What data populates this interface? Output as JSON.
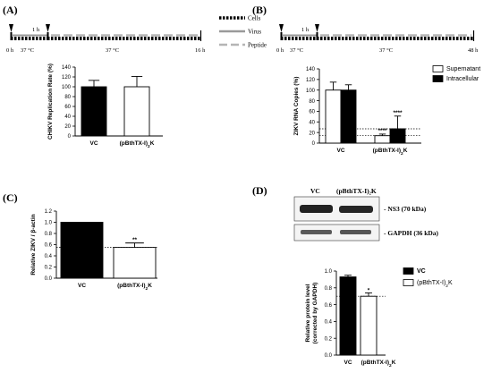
{
  "panels": {
    "A": {
      "label": "(A)"
    },
    "B": {
      "label": "(B)"
    },
    "C": {
      "label": "(C)"
    },
    "D": {
      "label": "(D)"
    }
  },
  "timeline_legend": {
    "cells": "Cells",
    "virus": "Virus",
    "peptide": "Peptide"
  },
  "timeline_A": {
    "t0": "0 h",
    "t1": "1 h",
    "temp1": "37 °C",
    "temp2": "37 °C",
    "tend": "16 h"
  },
  "timeline_B": {
    "t0": "0 h",
    "t1": "1 h",
    "temp1": "37 °C",
    "temp2": "37 °C",
    "tend": "48 h"
  },
  "western_blot": {
    "lane1": "VC",
    "lane2": "(pBthTX-I)₂K",
    "band1": "- NS3 (70 kDa)",
    "band2": "- GAPDH (36 kDa)"
  },
  "chart_data": [
    {
      "panel": "A",
      "type": "bar",
      "categories": [
        "VC",
        "(pBthTX-I)₂K"
      ],
      "values": [
        100,
        100
      ],
      "errors": [
        13,
        21
      ],
      "fills": [
        "#000000",
        "#ffffff"
      ],
      "ylabel": "CHIKV Replication Rate (%)",
      "ylim": [
        0,
        140
      ],
      "yticks": [
        "0",
        "20",
        "40",
        "60",
        "80",
        "100",
        "120",
        "140"
      ]
    },
    {
      "panel": "B",
      "type": "bar",
      "categories": [
        "VC",
        "(pBthTX-I)₂K"
      ],
      "series": [
        {
          "name": "Supernatant",
          "values": [
            100,
            14
          ],
          "errors": [
            15,
            3
          ],
          "fill": "#ffffff"
        },
        {
          "name": "Intracellular",
          "values": [
            100,
            27
          ],
          "errors": [
            10,
            24
          ],
          "fill": "#000000"
        }
      ],
      "annotations": [
        "****",
        "****"
      ],
      "reference_lines": [
        27,
        14
      ],
      "ylabel": "ZIKV RNA Copies (%)",
      "ylim": [
        0,
        140
      ],
      "yticks": [
        "0",
        "20",
        "40",
        "60",
        "80",
        "100",
        "120",
        "140"
      ],
      "legend": "top-right"
    },
    {
      "panel": "C",
      "type": "bar",
      "categories": [
        "VC",
        "(pBthTX-I)₂K"
      ],
      "values": [
        1.0,
        0.55
      ],
      "errors": [
        0,
        0.08
      ],
      "fills": [
        "#000000",
        "#ffffff"
      ],
      "annotations": [
        "",
        "**"
      ],
      "reference_line": 0.55,
      "ylabel": "Relative ZIKV / β-actin",
      "ylim": [
        0,
        1.2
      ],
      "yticks": [
        "0.0",
        "0.2",
        "0.4",
        "0.6",
        "0.8",
        "1.0",
        "1.2"
      ]
    },
    {
      "panel": "D",
      "type": "bar",
      "categories": [
        "VC",
        "(pBthTX-I)₂K"
      ],
      "values": [
        0.93,
        0.7
      ],
      "errors": [
        0.02,
        0.04
      ],
      "fills": [
        "#000000",
        "#ffffff"
      ],
      "annotations": [
        "",
        "*"
      ],
      "reference_line": 0.7,
      "ylabel": "Relative protein level\n(corrected by GAPDH)",
      "ylim": [
        0,
        1.0
      ],
      "yticks": [
        "0.0",
        "0.2",
        "0.4",
        "0.6",
        "0.8",
        "1.0"
      ],
      "legend": "right",
      "legend_entries": [
        "VC",
        "(pBthTX-I)₂K"
      ]
    }
  ]
}
